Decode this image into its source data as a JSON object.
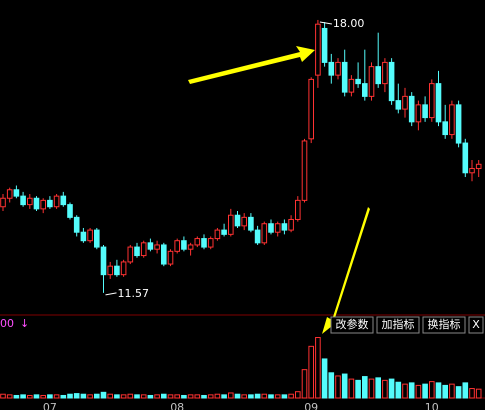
{
  "chart_data": {
    "type": "candlestick",
    "categories": [
      null,
      null,
      null,
      null,
      null,
      null,
      null,
      "07",
      null,
      null,
      null,
      null,
      null,
      null,
      null,
      null,
      null,
      null,
      null,
      null,
      null,
      null,
      null,
      null,
      null,
      null,
      "08",
      null,
      null,
      null,
      null,
      null,
      null,
      null,
      null,
      null,
      null,
      null,
      null,
      null,
      null,
      null,
      null,
      null,
      null,
      null,
      "09",
      null,
      null,
      null,
      null,
      null,
      null,
      null,
      null,
      null,
      null,
      null,
      null,
      null,
      null,
      null,
      null,
      null,
      "10",
      null,
      null,
      null,
      null,
      null,
      null,
      null
    ],
    "open": [
      13.6,
      13.8,
      14.0,
      13.85,
      13.65,
      13.8,
      13.55,
      13.75,
      13.6,
      13.85,
      13.65,
      13.35,
      13.0,
      12.8,
      13.05,
      12.65,
      12.0,
      12.2,
      12.0,
      12.3,
      12.65,
      12.45,
      12.75,
      12.6,
      12.7,
      12.25,
      12.55,
      12.8,
      12.6,
      12.7,
      12.85,
      12.65,
      12.85,
      13.05,
      12.95,
      13.4,
      13.15,
      13.35,
      13.05,
      12.75,
      13.2,
      13.0,
      13.2,
      13.05,
      13.3,
      13.75,
      15.2,
      16.7,
      17.8,
      17.0,
      16.7,
      17.0,
      16.3,
      16.6,
      16.5,
      16.2,
      16.9,
      16.5,
      17.0,
      16.1,
      15.9,
      16.2,
      15.6,
      16.0,
      15.7,
      16.5,
      15.6,
      15.3,
      16.0,
      15.1,
      14.4,
      14.5
    ],
    "high": [
      13.9,
      14.05,
      14.1,
      13.95,
      13.9,
      13.85,
      13.8,
      13.85,
      13.9,
      13.95,
      13.7,
      13.4,
      13.1,
      13.1,
      13.1,
      12.7,
      12.3,
      12.35,
      12.35,
      12.7,
      12.75,
      12.8,
      12.85,
      12.8,
      12.75,
      12.6,
      12.85,
      12.9,
      12.75,
      12.9,
      12.95,
      12.9,
      13.1,
      13.2,
      13.55,
      13.5,
      13.45,
      13.45,
      13.15,
      13.25,
      13.3,
      13.25,
      13.3,
      13.4,
      13.85,
      15.2,
      16.65,
      18.0,
      17.95,
      17.2,
      17.1,
      17.3,
      16.7,
      17.0,
      17.3,
      17.0,
      17.7,
      17.1,
      17.1,
      16.5,
      16.4,
      16.3,
      16.1,
      16.2,
      16.6,
      16.8,
      16.0,
      16.1,
      16.1,
      15.2,
      14.7,
      14.7
    ],
    "low": [
      13.5,
      13.7,
      13.8,
      13.6,
      13.55,
      13.5,
      13.45,
      13.55,
      13.55,
      13.6,
      13.3,
      12.9,
      12.75,
      12.75,
      12.6,
      11.57,
      11.9,
      11.95,
      11.95,
      12.25,
      12.4,
      12.4,
      12.55,
      12.5,
      12.2,
      12.2,
      12.5,
      12.55,
      12.45,
      12.65,
      12.6,
      12.6,
      12.8,
      12.9,
      12.9,
      13.1,
      13.05,
      13.0,
      12.7,
      12.7,
      12.95,
      12.9,
      12.95,
      13.0,
      13.25,
      13.7,
      15.1,
      16.4,
      16.9,
      16.5,
      16.6,
      16.2,
      16.2,
      16.4,
      16.1,
      16.1,
      16.4,
      16.3,
      16.0,
      15.8,
      15.7,
      15.5,
      15.4,
      15.6,
      15.6,
      15.5,
      15.2,
      15.2,
      15.0,
      14.3,
      14.2,
      14.3
    ],
    "close": [
      13.8,
      14.0,
      13.85,
      13.65,
      13.8,
      13.55,
      13.75,
      13.6,
      13.85,
      13.65,
      13.35,
      13.0,
      12.8,
      13.05,
      12.65,
      12.0,
      12.2,
      12.0,
      12.3,
      12.65,
      12.45,
      12.75,
      12.6,
      12.7,
      12.25,
      12.55,
      12.8,
      12.6,
      12.7,
      12.85,
      12.65,
      12.85,
      13.05,
      12.95,
      13.4,
      13.15,
      13.35,
      13.05,
      12.75,
      13.2,
      13.0,
      13.2,
      13.05,
      13.3,
      13.75,
      15.15,
      16.6,
      17.9,
      17.0,
      16.7,
      17.0,
      16.3,
      16.6,
      16.5,
      16.2,
      16.9,
      16.5,
      17.0,
      16.1,
      15.9,
      16.2,
      15.6,
      16.0,
      15.7,
      16.5,
      15.6,
      15.3,
      16.0,
      15.1,
      14.4,
      14.5,
      14.6
    ],
    "volume": [
      6,
      5,
      4,
      5,
      4,
      5,
      4,
      5,
      5,
      4,
      6,
      7,
      6,
      5,
      6,
      9,
      6,
      5,
      5,
      6,
      5,
      5,
      4,
      5,
      6,
      5,
      5,
      4,
      5,
      5,
      4,
      5,
      6,
      5,
      8,
      6,
      5,
      5,
      6,
      6,
      5,
      5,
      5,
      6,
      10,
      45,
      82,
      96,
      62,
      40,
      35,
      38,
      30,
      28,
      34,
      30,
      32,
      28,
      30,
      25,
      22,
      24,
      20,
      22,
      26,
      24,
      20,
      22,
      18,
      24,
      15,
      14
    ],
    "ylim": [
      11.05,
      18.47
    ],
    "vlim": [
      0,
      100
    ],
    "bull_color": "#ff3232",
    "bear_color": "#54fcfc",
    "high_label": "18.00",
    "low_label": "11.57",
    "volume_indicator_label": "00",
    "buttons": [
      "改参数",
      "加指标",
      "换指标",
      "X"
    ]
  }
}
